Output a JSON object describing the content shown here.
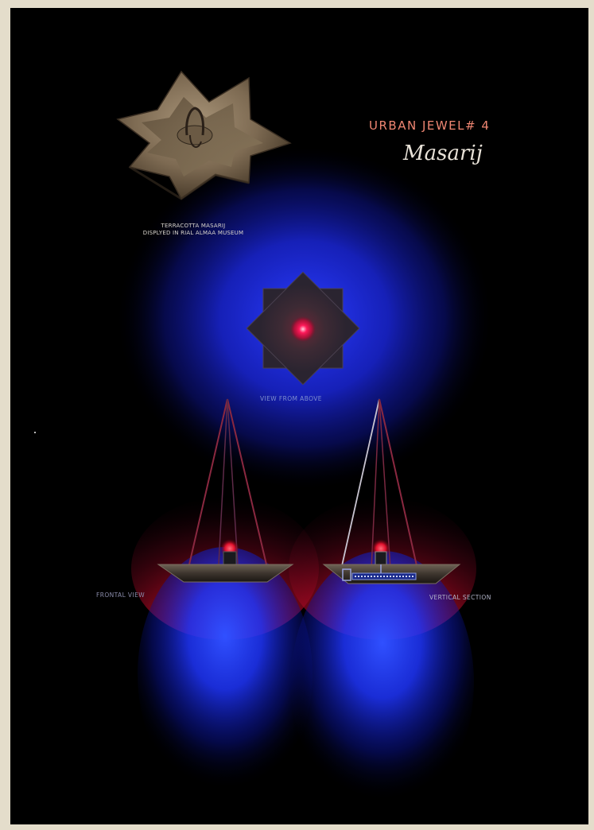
{
  "poster": {
    "title": "URBAN JEWEL# 4",
    "subtitle": "Masarij",
    "caption_line1": "TERRACOTTA MASARIJ",
    "caption_line2": "DISPLYED IN RIAL ALMAA MUSEUM",
    "view_above_label": "VIEW FROM ABOVE",
    "frontal_label": "FRONTAL VIEW",
    "vertical_label": "VERTICAL SECTION"
  },
  "colors": {
    "page_border": "#e4ddcb",
    "background": "#000000",
    "title_color": "#ef8672",
    "blue_glow": "#1a2cff",
    "red_glow": "#ff1030",
    "star_fill": "#3a2c34"
  },
  "images": [
    {
      "name": "terracotta-masarij-photo",
      "description": "terracotta eight-pointed star oil lamp"
    }
  ]
}
